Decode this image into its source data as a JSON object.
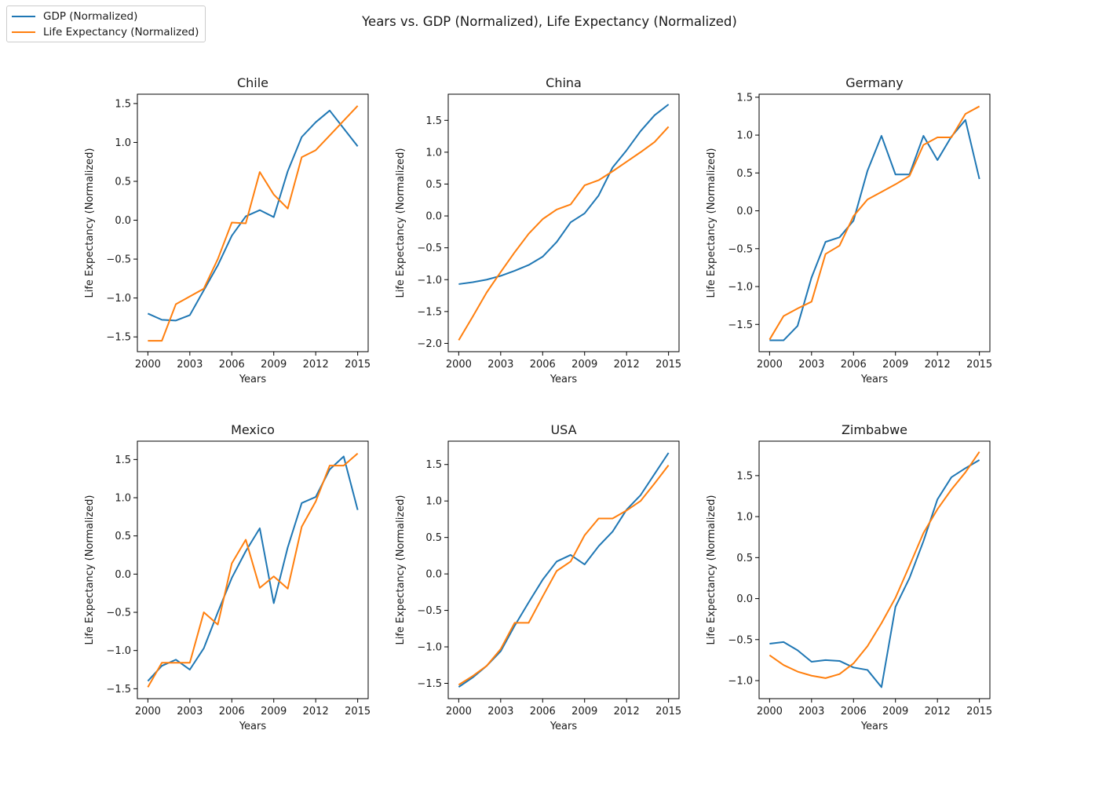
{
  "figure": {
    "title": "Years vs. GDP (Normalized), Life Expectancy (Normalized)",
    "legend": [
      {
        "label": "GDP (Normalized)",
        "color": "#1f77b4"
      },
      {
        "label": "Life Expectancy (Normalized)",
        "color": "#ff7f0e"
      }
    ],
    "legend_position": "top-left"
  },
  "chart_data": [
    {
      "type": "line",
      "title": "Chile",
      "xlabel": "Years",
      "ylabel": "Life Expectancy (Normalized)",
      "x": [
        2000,
        2001,
        2002,
        2003,
        2004,
        2005,
        2006,
        2007,
        2008,
        2009,
        2010,
        2011,
        2012,
        2013,
        2014,
        2015
      ],
      "xticks": [
        2000,
        2003,
        2006,
        2009,
        2012,
        2015
      ],
      "yticks": [
        -1.5,
        -1.0,
        -0.5,
        0.0,
        0.5,
        1.0,
        1.5
      ],
      "ytick_labels": [
        "−1.5",
        "−1.0",
        "−0.5",
        "0.0",
        "0.5",
        "1.0",
        "1.5"
      ],
      "xlim": [
        1999.25,
        2015.75
      ],
      "ylim": [
        -1.69,
        1.62
      ],
      "series": [
        {
          "name": "GDP (Normalized)",
          "values": [
            -1.2,
            -1.28,
            -1.29,
            -1.22,
            -0.9,
            -0.58,
            -0.2,
            0.05,
            0.13,
            0.04,
            0.63,
            1.07,
            1.26,
            1.41,
            1.18,
            0.95
          ]
        },
        {
          "name": "Life Expectancy (Normalized)",
          "values": [
            -1.55,
            -1.55,
            -1.08,
            -0.98,
            -0.88,
            -0.5,
            -0.03,
            -0.04,
            0.62,
            0.33,
            0.15,
            0.81,
            0.9,
            1.09,
            1.28,
            1.47
          ]
        }
      ]
    },
    {
      "type": "line",
      "title": "China",
      "xlabel": "Years",
      "ylabel": "Life Expectancy (Normalized)",
      "x": [
        2000,
        2001,
        2002,
        2003,
        2004,
        2005,
        2006,
        2007,
        2008,
        2009,
        2010,
        2011,
        2012,
        2013,
        2014,
        2015
      ],
      "xticks": [
        2000,
        2003,
        2006,
        2009,
        2012,
        2015
      ],
      "yticks": [
        -2.0,
        -1.5,
        -1.0,
        -0.5,
        0.0,
        0.5,
        1.0,
        1.5
      ],
      "ytick_labels": [
        "−2.0",
        "−1.5",
        "−1.0",
        "−0.5",
        "0.0",
        "0.5",
        "1.0",
        "1.5"
      ],
      "xlim": [
        1999.25,
        2015.75
      ],
      "ylim": [
        -2.13,
        1.91
      ],
      "series": [
        {
          "name": "GDP (Normalized)",
          "values": [
            -1.07,
            -1.04,
            -1.0,
            -0.94,
            -0.86,
            -0.77,
            -0.64,
            -0.41,
            -0.1,
            0.04,
            0.32,
            0.76,
            1.03,
            1.33,
            1.58,
            1.75
          ]
        },
        {
          "name": "Life Expectancy (Normalized)",
          "values": [
            -1.95,
            -1.58,
            -1.2,
            -0.88,
            -0.57,
            -0.28,
            -0.05,
            0.1,
            0.18,
            0.48,
            0.56,
            0.7,
            0.85,
            1.0,
            1.16,
            1.4
          ]
        }
      ]
    },
    {
      "type": "line",
      "title": "Germany",
      "xlabel": "Years",
      "ylabel": "Life Expectancy (Normalized)",
      "x": [
        2000,
        2001,
        2002,
        2003,
        2004,
        2005,
        2006,
        2007,
        2008,
        2009,
        2010,
        2011,
        2012,
        2013,
        2014,
        2015
      ],
      "xticks": [
        2000,
        2003,
        2006,
        2009,
        2012,
        2015
      ],
      "yticks": [
        -1.5,
        -1.0,
        -0.5,
        0.0,
        0.5,
        1.0,
        1.5
      ],
      "ytick_labels": [
        "−1.5",
        "−1.0",
        "−0.5",
        "0.0",
        "0.5",
        "1.0",
        "1.5"
      ],
      "xlim": [
        1999.25,
        2015.75
      ],
      "ylim": [
        -1.86,
        1.54
      ],
      "series": [
        {
          "name": "GDP (Normalized)",
          "values": [
            -1.71,
            -1.71,
            -1.52,
            -0.88,
            -0.41,
            -0.35,
            -0.13,
            0.53,
            0.99,
            0.48,
            0.48,
            0.99,
            0.67,
            0.98,
            1.2,
            0.42
          ]
        },
        {
          "name": "Life Expectancy (Normalized)",
          "values": [
            -1.7,
            -1.39,
            -1.29,
            -1.2,
            -0.57,
            -0.46,
            -0.07,
            0.15,
            0.25,
            0.35,
            0.46,
            0.87,
            0.97,
            0.97,
            1.28,
            1.38
          ]
        }
      ]
    },
    {
      "type": "line",
      "title": "Mexico",
      "xlabel": "Years",
      "ylabel": "Life Expectancy (Normalized)",
      "x": [
        2000,
        2001,
        2002,
        2003,
        2004,
        2005,
        2006,
        2007,
        2008,
        2009,
        2010,
        2011,
        2012,
        2013,
        2014,
        2015
      ],
      "xticks": [
        2000,
        2003,
        2006,
        2009,
        2012,
        2015
      ],
      "yticks": [
        -1.5,
        -1.0,
        -0.5,
        0.0,
        0.5,
        1.0,
        1.5
      ],
      "ytick_labels": [
        "−1.5",
        "−1.0",
        "−0.5",
        "0.0",
        "0.5",
        "1.0",
        "1.5"
      ],
      "xlim": [
        1999.25,
        2015.75
      ],
      "ylim": [
        -1.63,
        1.74
      ],
      "series": [
        {
          "name": "GDP (Normalized)",
          "values": [
            -1.4,
            -1.2,
            -1.12,
            -1.25,
            -0.97,
            -0.5,
            -0.05,
            0.3,
            0.6,
            -0.38,
            0.35,
            0.93,
            1.01,
            1.37,
            1.54,
            0.84
          ]
        },
        {
          "name": "Life Expectancy (Normalized)",
          "values": [
            -1.48,
            -1.16,
            -1.16,
            -1.16,
            -0.5,
            -0.66,
            0.14,
            0.45,
            -0.18,
            -0.03,
            -0.19,
            0.62,
            0.95,
            1.42,
            1.42,
            1.58
          ]
        }
      ]
    },
    {
      "type": "line",
      "title": "USA",
      "xlabel": "Years",
      "ylabel": "Life Expectancy (Normalized)",
      "x": [
        2000,
        2001,
        2002,
        2003,
        2004,
        2005,
        2006,
        2007,
        2008,
        2009,
        2010,
        2011,
        2012,
        2013,
        2014,
        2015
      ],
      "xticks": [
        2000,
        2003,
        2006,
        2009,
        2012,
        2015
      ],
      "yticks": [
        -1.5,
        -1.0,
        -0.5,
        0.0,
        0.5,
        1.0,
        1.5
      ],
      "ytick_labels": [
        "−1.5",
        "−1.0",
        "−0.5",
        "0.0",
        "0.5",
        "1.0",
        "1.5"
      ],
      "xlim": [
        1999.25,
        2015.75
      ],
      "ylim": [
        -1.71,
        1.82
      ],
      "series": [
        {
          "name": "GDP (Normalized)",
          "values": [
            -1.55,
            -1.42,
            -1.26,
            -1.06,
            -0.71,
            -0.39,
            -0.08,
            0.17,
            0.26,
            0.13,
            0.38,
            0.58,
            0.88,
            1.08,
            1.37,
            1.66
          ]
        },
        {
          "name": "Life Expectancy (Normalized)",
          "values": [
            -1.52,
            -1.4,
            -1.26,
            -1.03,
            -0.67,
            -0.67,
            -0.31,
            0.04,
            0.17,
            0.53,
            0.76,
            0.76,
            0.87,
            1.0,
            1.24,
            1.49
          ]
        }
      ]
    },
    {
      "type": "line",
      "title": "Zimbabwe",
      "xlabel": "Years",
      "ylabel": "Life Expectancy (Normalized)",
      "x": [
        2000,
        2001,
        2002,
        2003,
        2004,
        2005,
        2006,
        2007,
        2008,
        2009,
        2010,
        2011,
        2012,
        2013,
        2014,
        2015
      ],
      "xticks": [
        2000,
        2003,
        2006,
        2009,
        2012,
        2015
      ],
      "yticks": [
        -1.0,
        -0.5,
        0.0,
        0.5,
        1.0,
        1.5
      ],
      "ytick_labels": [
        "−1.0",
        "−0.5",
        "0.0",
        "0.5",
        "1.0",
        "1.5"
      ],
      "xlim": [
        1999.25,
        2015.75
      ],
      "ylim": [
        -1.22,
        1.92
      ],
      "series": [
        {
          "name": "GDP (Normalized)",
          "values": [
            -0.55,
            -0.53,
            -0.63,
            -0.77,
            -0.75,
            -0.76,
            -0.84,
            -0.87,
            -1.08,
            -0.1,
            0.25,
            0.7,
            1.21,
            1.48,
            1.59,
            1.69
          ]
        },
        {
          "name": "Life Expectancy (Normalized)",
          "values": [
            -0.69,
            -0.81,
            -0.89,
            -0.94,
            -0.97,
            -0.92,
            -0.79,
            -0.58,
            -0.3,
            0.01,
            0.4,
            0.8,
            1.09,
            1.33,
            1.54,
            1.79
          ]
        }
      ]
    }
  ]
}
